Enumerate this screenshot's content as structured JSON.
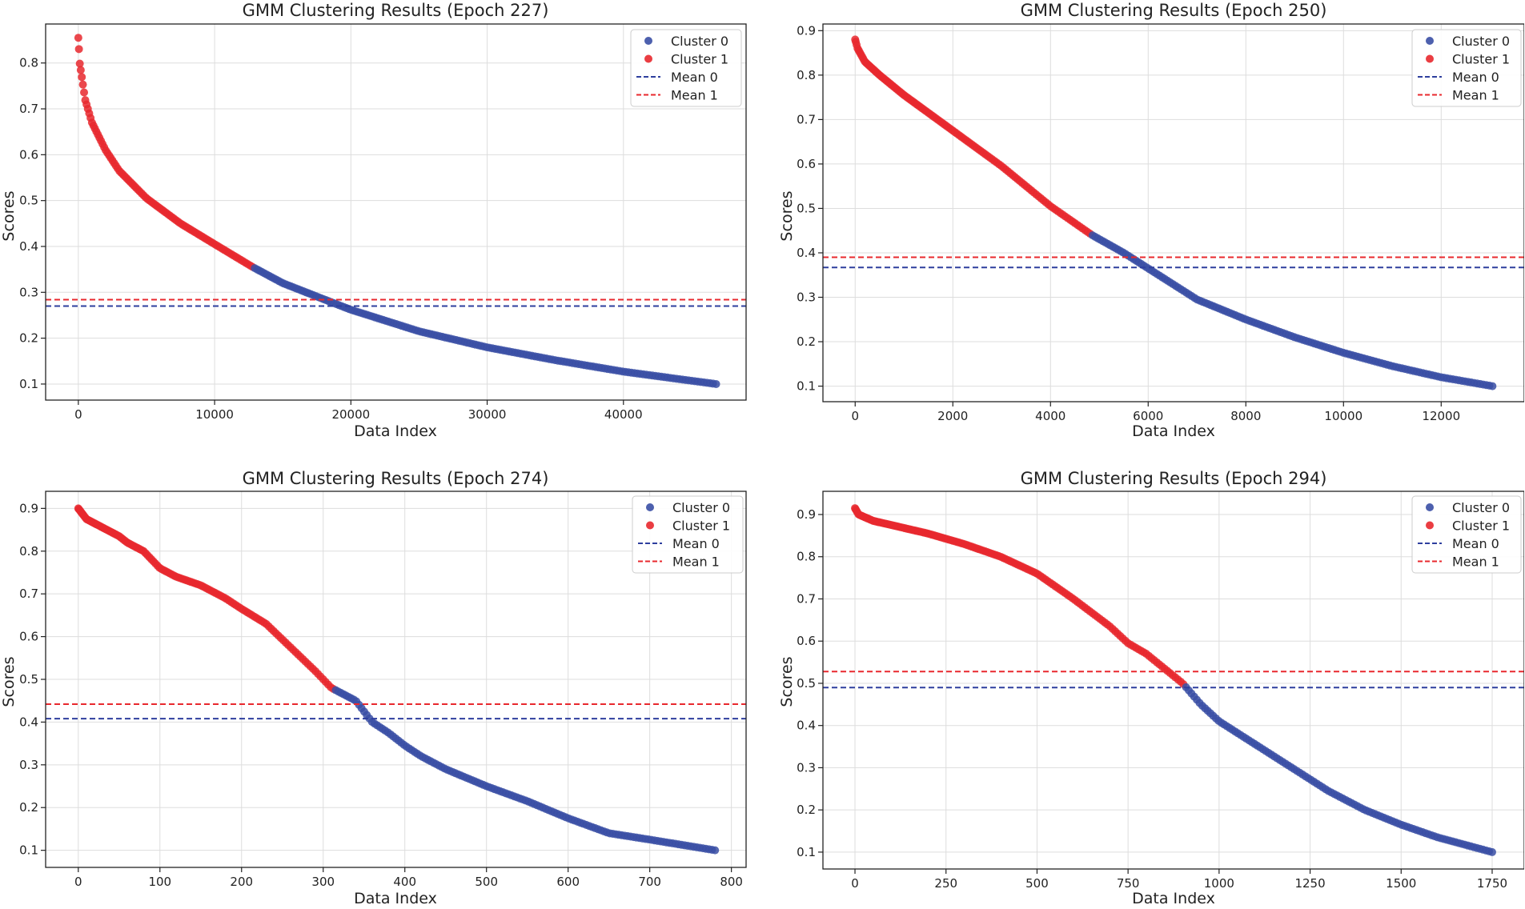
{
  "colors": {
    "cluster0": "#3a4fa5",
    "cluster1": "#e8282e",
    "mean0": "#2e3f9e",
    "mean1": "#e8282e"
  },
  "chart_data": [
    {
      "type": "scatter",
      "title": "GMM Clustering Results (Epoch 227)",
      "xlabel": "Data Index",
      "ylabel": "Scores",
      "xlim": [
        -2400,
        49000
      ],
      "ylim": [
        0.065,
        0.885
      ],
      "xticks": [
        0,
        10000,
        20000,
        30000,
        40000
      ],
      "xtick_labels": [
        "0",
        "10000",
        "20000",
        "30000",
        "40000"
      ],
      "yticks": [
        0.1,
        0.2,
        0.3,
        0.4,
        0.5,
        0.6,
        0.7,
        0.8
      ],
      "ytick_labels": [
        "0.1",
        "0.2",
        "0.3",
        "0.4",
        "0.5",
        "0.6",
        "0.7",
        "0.8"
      ],
      "n_points": 46800,
      "curve": {
        "x": [
          0,
          100,
          500,
          1000,
          2000,
          3000,
          5000,
          7500,
          10000,
          12800,
          15000,
          18000,
          20000,
          25000,
          30000,
          35000,
          40000,
          46800
        ],
        "y": [
          0.855,
          0.8,
          0.72,
          0.67,
          0.61,
          0.565,
          0.505,
          0.45,
          0.405,
          0.355,
          0.32,
          0.285,
          0.262,
          0.215,
          0.18,
          0.152,
          0.127,
          0.1
        ]
      },
      "split_index": 12800,
      "clusters": [
        {
          "name": "Cluster 0",
          "range": [
            12800,
            46800
          ]
        },
        {
          "name": "Cluster 1",
          "range": [
            0,
            12800
          ]
        }
      ],
      "means": [
        {
          "name": "Mean 0",
          "value": 0.27
        },
        {
          "name": "Mean 1",
          "value": 0.284
        }
      ],
      "legend": [
        "Cluster 0",
        "Cluster 1",
        "Mean 0",
        "Mean 1"
      ],
      "legend_position": "top-right"
    },
    {
      "type": "scatter",
      "title": "GMM Clustering Results (Epoch 250)",
      "xlabel": "Data Index",
      "ylabel": "Scores",
      "xlim": [
        -660,
        13700
      ],
      "ylim": [
        0.065,
        0.915
      ],
      "xticks": [
        0,
        2000,
        4000,
        6000,
        8000,
        10000,
        12000
      ],
      "xtick_labels": [
        "0",
        "2000",
        "4000",
        "6000",
        "8000",
        "10000",
        "12000"
      ],
      "yticks": [
        0.1,
        0.2,
        0.3,
        0.4,
        0.5,
        0.6,
        0.7,
        0.8,
        0.9
      ],
      "ytick_labels": [
        "0.1",
        "0.2",
        "0.3",
        "0.4",
        "0.5",
        "0.6",
        "0.7",
        "0.8",
        "0.9"
      ],
      "n_points": 13050,
      "curve": {
        "x": [
          0,
          50,
          200,
          500,
          1000,
          2000,
          3000,
          4000,
          4850,
          5500,
          6000,
          7000,
          8000,
          9000,
          10000,
          11000,
          12000,
          13050
        ],
        "y": [
          0.88,
          0.86,
          0.83,
          0.8,
          0.755,
          0.675,
          0.595,
          0.505,
          0.44,
          0.4,
          0.365,
          0.295,
          0.25,
          0.21,
          0.175,
          0.145,
          0.12,
          0.1
        ]
      },
      "split_index": 4850,
      "clusters": [
        {
          "name": "Cluster 0",
          "range": [
            4850,
            13050
          ]
        },
        {
          "name": "Cluster 1",
          "range": [
            0,
            4850
          ]
        }
      ],
      "means": [
        {
          "name": "Mean 0",
          "value": 0.367
        },
        {
          "name": "Mean 1",
          "value": 0.39
        }
      ],
      "legend": [
        "Cluster 0",
        "Cluster 1",
        "Mean 0",
        "Mean 1"
      ],
      "legend_position": "top-right"
    },
    {
      "type": "scatter",
      "title": "GMM Clustering Results (Epoch 274)",
      "xlabel": "Data Index",
      "ylabel": "Scores",
      "xlim": [
        -40,
        818
      ],
      "ylim": [
        0.06,
        0.94
      ],
      "xticks": [
        0,
        100,
        200,
        300,
        400,
        500,
        600,
        700,
        800
      ],
      "xtick_labels": [
        "0",
        "100",
        "200",
        "300",
        "400",
        "500",
        "600",
        "700",
        "800"
      ],
      "yticks": [
        0.1,
        0.2,
        0.3,
        0.4,
        0.5,
        0.6,
        0.7,
        0.8,
        0.9
      ],
      "ytick_labels": [
        "0.1",
        "0.2",
        "0.3",
        "0.4",
        "0.5",
        "0.6",
        "0.7",
        "0.8",
        "0.9"
      ],
      "n_points": 780,
      "curve": {
        "x": [
          0,
          10,
          30,
          50,
          60,
          80,
          100,
          120,
          150,
          180,
          200,
          230,
          260,
          290,
          310,
          320,
          340,
          360,
          380,
          400,
          420,
          450,
          500,
          550,
          600,
          650,
          700,
          780
        ],
        "y": [
          0.9,
          0.875,
          0.855,
          0.835,
          0.82,
          0.8,
          0.76,
          0.74,
          0.72,
          0.69,
          0.665,
          0.63,
          0.575,
          0.52,
          0.48,
          0.47,
          0.45,
          0.4,
          0.375,
          0.345,
          0.32,
          0.29,
          0.25,
          0.215,
          0.175,
          0.14,
          0.125,
          0.1
        ]
      },
      "split_index": 315,
      "clusters": [
        {
          "name": "Cluster 0",
          "range": [
            315,
            780
          ]
        },
        {
          "name": "Cluster 1",
          "range": [
            0,
            315
          ]
        }
      ],
      "means": [
        {
          "name": "Mean 0",
          "value": 0.408
        },
        {
          "name": "Mean 1",
          "value": 0.442
        }
      ],
      "legend": [
        "Cluster 0",
        "Cluster 1",
        "Mean 0",
        "Mean 1"
      ],
      "legend_position": "top-right"
    },
    {
      "type": "scatter",
      "title": "GMM Clustering Results (Epoch 294)",
      "xlabel": "Data Index",
      "ylabel": "Scores",
      "xlim": [
        -88,
        1838
      ],
      "ylim": [
        0.06,
        0.955
      ],
      "xticks": [
        0,
        250,
        500,
        750,
        1000,
        1250,
        1500,
        1750
      ],
      "xtick_labels": [
        "0",
        "250",
        "500",
        "750",
        "1000",
        "1250",
        "1500",
        "1750"
      ],
      "yticks": [
        0.1,
        0.2,
        0.3,
        0.4,
        0.5,
        0.6,
        0.7,
        0.8,
        0.9
      ],
      "ytick_labels": [
        "0.1",
        "0.2",
        "0.3",
        "0.4",
        "0.5",
        "0.6",
        "0.7",
        "0.8",
        "0.9"
      ],
      "n_points": 1750,
      "curve": {
        "x": [
          0,
          10,
          50,
          100,
          200,
          300,
          400,
          500,
          600,
          700,
          750,
          800,
          850,
          900,
          950,
          1000,
          1100,
          1200,
          1300,
          1400,
          1500,
          1600,
          1750
        ],
        "y": [
          0.915,
          0.9,
          0.885,
          0.875,
          0.855,
          0.83,
          0.8,
          0.76,
          0.7,
          0.635,
          0.595,
          0.57,
          0.535,
          0.5,
          0.45,
          0.41,
          0.355,
          0.3,
          0.245,
          0.2,
          0.165,
          0.135,
          0.1
        ]
      },
      "split_index": 905,
      "clusters": [
        {
          "name": "Cluster 0",
          "range": [
            905,
            1750
          ]
        },
        {
          "name": "Cluster 1",
          "range": [
            0,
            905
          ]
        }
      ],
      "means": [
        {
          "name": "Mean 0",
          "value": 0.49
        },
        {
          "name": "Mean 1",
          "value": 0.528
        }
      ],
      "legend": [
        "Cluster 0",
        "Cluster 1",
        "Mean 0",
        "Mean 1"
      ],
      "legend_position": "top-right"
    }
  ]
}
